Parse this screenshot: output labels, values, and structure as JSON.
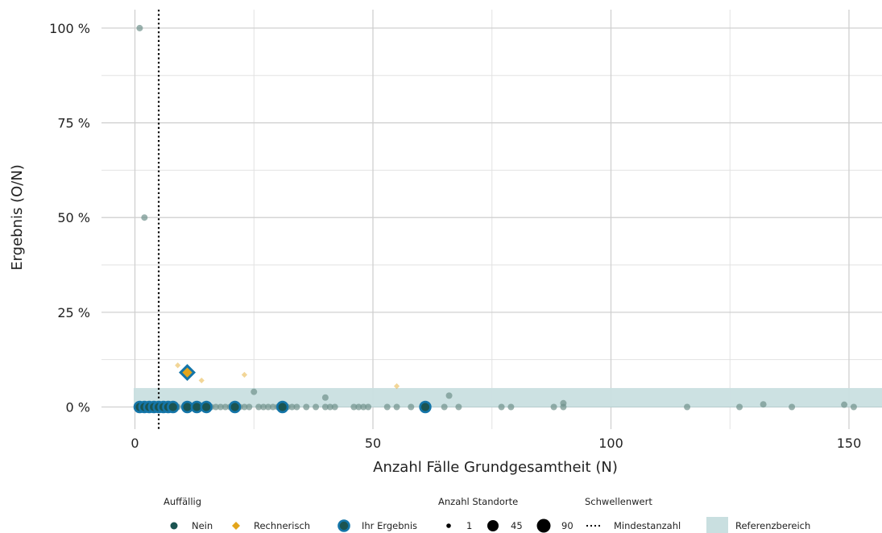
{
  "chart_data": {
    "type": "scatter",
    "xlabel": "Anzahl Fälle Grundgesamtheit (N)",
    "ylabel": "Ergebnis (O/N)",
    "xlim": [
      -5,
      157
    ],
    "ylim": [
      -5,
      104
    ],
    "x_ticks": [
      0,
      50,
      100,
      150
    ],
    "x_tick_labels": [
      "0",
      "50",
      "100",
      "150"
    ],
    "x_minor_ticks": [
      25,
      75,
      125
    ],
    "y_ticks": [
      0,
      25,
      50,
      75,
      100
    ],
    "y_tick_labels": [
      "0 %",
      "25 %",
      "50 %",
      "75 %",
      "100 %"
    ],
    "y_minor_ticks": [
      12.5,
      37.5,
      62.5,
      87.5
    ],
    "grid": true,
    "reference_band": {
      "y_from": 0,
      "y_to": 5,
      "color": "#c9dfe0"
    },
    "threshold": {
      "x": 5,
      "style": "dotted"
    },
    "colors": {
      "nein": "#1b5451",
      "rechnerisch": "#e3a51b",
      "ihr_ergebnis": "#1475a8",
      "grid": "#d0d0d0"
    },
    "series": [
      {
        "key": "nein",
        "points": [
          {
            "x": 1,
            "y": 100
          },
          {
            "x": 2,
            "y": 50
          },
          {
            "x": 25,
            "y": 4
          },
          {
            "x": 40,
            "y": 2.5
          },
          {
            "x": 66,
            "y": 3
          },
          {
            "x": 90,
            "y": 1
          },
          {
            "x": 132,
            "y": 0.7
          },
          {
            "x": 149,
            "y": 0.6
          },
          {
            "x": 2,
            "y": 0
          },
          {
            "x": 3,
            "y": 0
          },
          {
            "x": 4,
            "y": 0
          },
          {
            "x": 7,
            "y": 0
          },
          {
            "x": 9,
            "y": 0
          },
          {
            "x": 11,
            "y": 0
          },
          {
            "x": 14,
            "y": 0
          },
          {
            "x": 16,
            "y": 0
          },
          {
            "x": 17,
            "y": 0
          },
          {
            "x": 18,
            "y": 0
          },
          {
            "x": 19,
            "y": 0
          },
          {
            "x": 20,
            "y": 0
          },
          {
            "x": 22,
            "y": 0
          },
          {
            "x": 23,
            "y": 0
          },
          {
            "x": 24,
            "y": 0
          },
          {
            "x": 26,
            "y": 0
          },
          {
            "x": 27,
            "y": 0
          },
          {
            "x": 28,
            "y": 0
          },
          {
            "x": 29,
            "y": 0
          },
          {
            "x": 30,
            "y": 0
          },
          {
            "x": 32,
            "y": 0
          },
          {
            "x": 33,
            "y": 0
          },
          {
            "x": 34,
            "y": 0
          },
          {
            "x": 36,
            "y": 0
          },
          {
            "x": 38,
            "y": 0
          },
          {
            "x": 40,
            "y": 0
          },
          {
            "x": 41,
            "y": 0
          },
          {
            "x": 42,
            "y": 0
          },
          {
            "x": 46,
            "y": 0
          },
          {
            "x": 47,
            "y": 0
          },
          {
            "x": 48,
            "y": 0
          },
          {
            "x": 49,
            "y": 0
          },
          {
            "x": 53,
            "y": 0
          },
          {
            "x": 55,
            "y": 0
          },
          {
            "x": 58,
            "y": 0
          },
          {
            "x": 65,
            "y": 0
          },
          {
            "x": 68,
            "y": 0
          },
          {
            "x": 77,
            "y": 0
          },
          {
            "x": 79,
            "y": 0
          },
          {
            "x": 88,
            "y": 0
          },
          {
            "x": 90,
            "y": 0
          },
          {
            "x": 116,
            "y": 0
          },
          {
            "x": 127,
            "y": 0
          },
          {
            "x": 138,
            "y": 0
          },
          {
            "x": 151,
            "y": 0
          }
        ]
      },
      {
        "key": "rechnerisch",
        "points": [
          {
            "x": 9,
            "y": 11
          },
          {
            "x": 14,
            "y": 7
          },
          {
            "x": 23,
            "y": 8.5
          },
          {
            "x": 55,
            "y": 5.5
          }
        ]
      },
      {
        "key": "ihr_ergebnis",
        "points": [
          {
            "x": 1,
            "y": 0
          },
          {
            "x": 2,
            "y": 0
          },
          {
            "x": 3,
            "y": 0
          },
          {
            "x": 4,
            "y": 0
          },
          {
            "x": 5,
            "y": 0
          },
          {
            "x": 6,
            "y": 0
          },
          {
            "x": 7,
            "y": 0
          },
          {
            "x": 8,
            "y": 0
          },
          {
            "x": 11,
            "y": 0
          },
          {
            "x": 13,
            "y": 0
          },
          {
            "x": 15,
            "y": 0
          },
          {
            "x": 21,
            "y": 0
          },
          {
            "x": 31,
            "y": 0
          },
          {
            "x": 61,
            "y": 0
          }
        ],
        "highlight": {
          "x": 11,
          "y": 9.1,
          "shape": "diamond"
        }
      }
    ],
    "legend": {
      "placement": "bottom",
      "groups": [
        {
          "title": "Auffällig",
          "items": [
            {
              "label": "Nein",
              "symbol": "circle",
              "color": "#1b5451"
            },
            {
              "label": "Rechnerisch",
              "symbol": "diamond",
              "color": "#e3a51b"
            },
            {
              "label": "Ihr Ergebnis",
              "symbol": "ring",
              "color": "#1475a8"
            }
          ]
        },
        {
          "title": "Anzahl Standorte",
          "items": [
            {
              "label": "1",
              "size": "small"
            },
            {
              "label": "45",
              "size": "medium"
            },
            {
              "label": "90",
              "size": "large"
            }
          ]
        },
        {
          "title": "Schwellenwert",
          "items": [
            {
              "label": "Mindestanzahl",
              "symbol": "dotted-line"
            }
          ]
        },
        {
          "title": "",
          "items": [
            {
              "label": "Referenzbereich",
              "symbol": "band"
            }
          ]
        }
      ]
    }
  }
}
